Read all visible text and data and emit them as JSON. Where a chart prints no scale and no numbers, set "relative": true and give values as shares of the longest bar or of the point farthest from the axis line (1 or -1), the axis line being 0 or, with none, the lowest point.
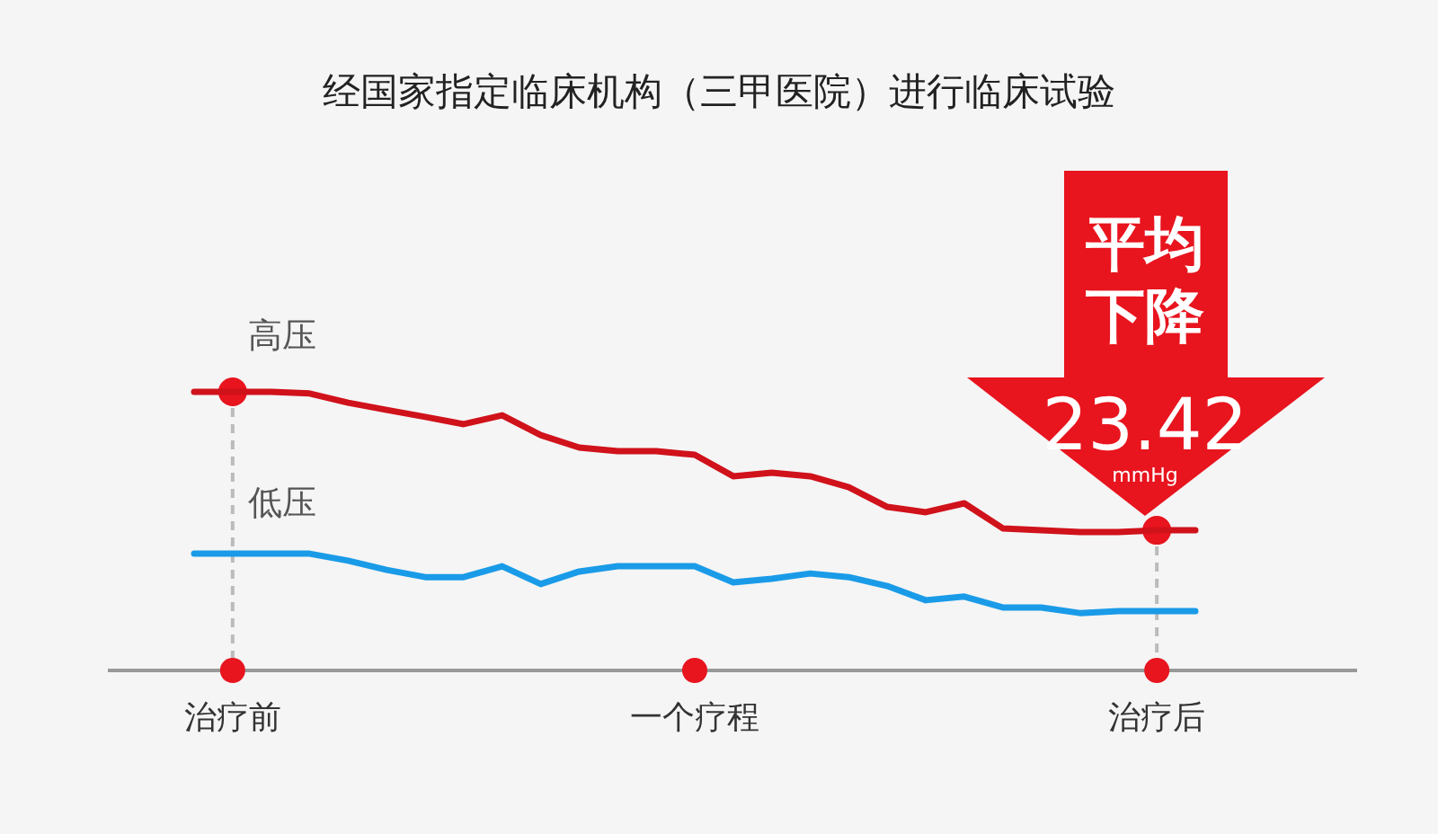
{
  "chart_data": {
    "type": "line",
    "title": "经国家指定临床机构（三甲医院）进行临床试验",
    "relative": true,
    "categories": [
      null,
      "治疗前",
      null,
      null,
      null,
      null,
      null,
      null,
      null,
      null,
      null,
      null,
      null,
      "一个疗程",
      null,
      null,
      null,
      null,
      null,
      null,
      null,
      null,
      null,
      null,
      null,
      "治疗后",
      null
    ],
    "series": [
      {
        "name": "高压",
        "color": "#d0121b",
        "values": [
          1,
          1,
          1,
          0.994,
          0.961,
          0.935,
          0.91,
          0.884,
          0.916,
          0.845,
          0.8,
          0.787,
          0.787,
          0.774,
          0.697,
          0.71,
          0.697,
          0.658,
          0.587,
          0.568,
          0.6,
          0.51,
          0.503,
          0.497,
          0.497,
          0.503,
          0.503
        ]
      },
      {
        "name": "低压",
        "color": "#1a9be8",
        "values": [
          0.419,
          0.419,
          0.419,
          0.419,
          0.394,
          0.361,
          0.335,
          0.335,
          0.374,
          0.31,
          0.355,
          0.374,
          0.374,
          0.374,
          0.316,
          0.329,
          0.348,
          0.335,
          0.303,
          0.252,
          0.265,
          0.226,
          0.226,
          0.206,
          0.213,
          0.213,
          0.213
        ]
      }
    ],
    "ref_lines": [
      {
        "axis": "x",
        "value": "治疗前",
        "color": "#bbbbbb",
        "line_style": "dashed"
      },
      {
        "axis": "x",
        "value": "治疗后",
        "color": "#bbbbbb",
        "line_style": "dashed"
      }
    ],
    "annotations": [
      "平均下降",
      "23.42",
      "mmHg"
    ],
    "grid": false,
    "legend": false,
    "marker": "none",
    "line_style": "solid"
  }
}
